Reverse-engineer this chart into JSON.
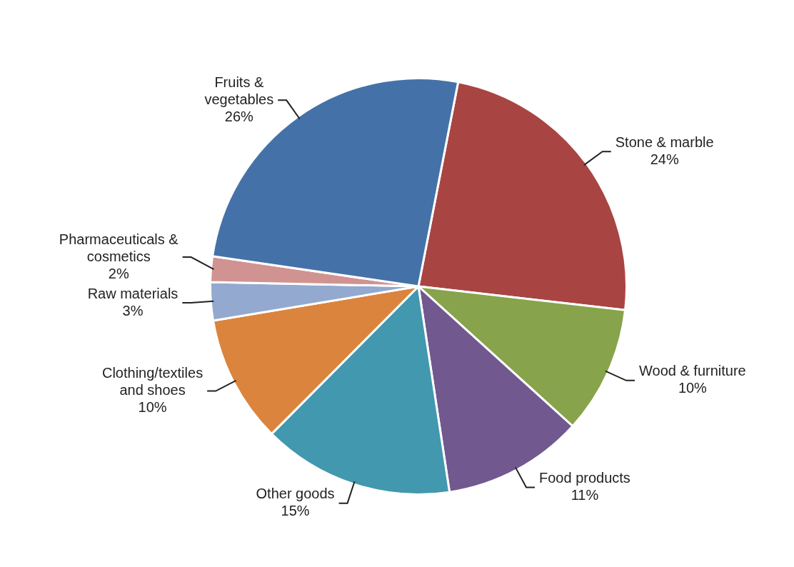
{
  "chart_data": {
    "type": "pie",
    "categories": [
      "Stone & marble",
      "Wood & furniture",
      "Food products",
      "Other goods",
      "Clothing/textiles and shoes",
      "Raw materials",
      "Pharmaceuticals & cosmetics",
      "Fruits & vegetables"
    ],
    "values": [
      24,
      10,
      11,
      15,
      10,
      3,
      2,
      26
    ],
    "value_labels": [
      "24%",
      "10%",
      "11%",
      "15%",
      "10%",
      "3%",
      "2%",
      "26%"
    ],
    "colors": [
      "#a84543",
      "#87a34b",
      "#71588f",
      "#4198af",
      "#db843d",
      "#93a9cf",
      "#d19392",
      "#4472a8"
    ],
    "legend": false
  }
}
